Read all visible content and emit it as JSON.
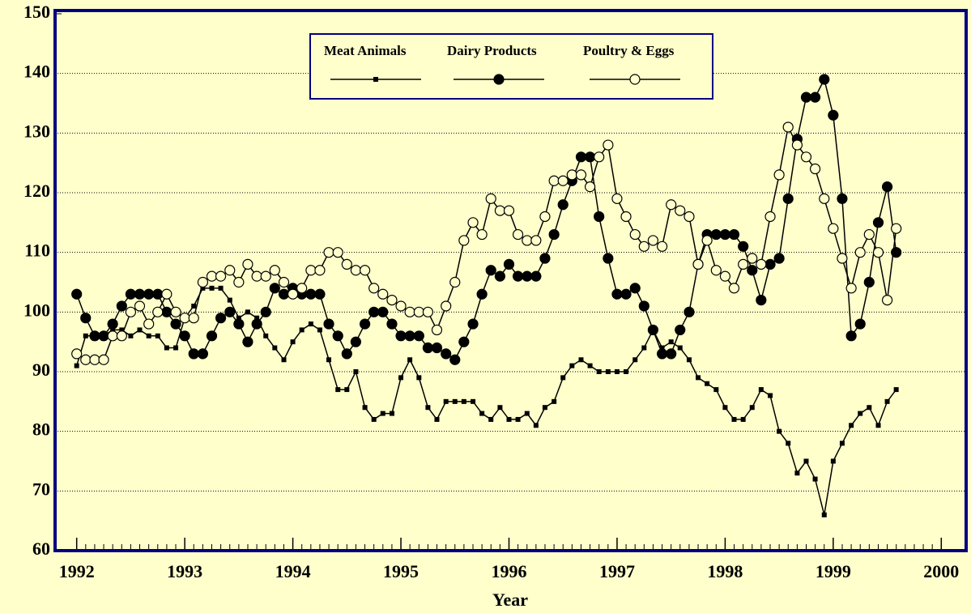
{
  "chart_data": {
    "type": "line",
    "x_label": "Year",
    "xlim": [
      1991.8,
      2000.23
    ],
    "xticks": [
      1992,
      1993,
      1994,
      1995,
      1996,
      1997,
      1998,
      1999,
      2000
    ],
    "ylim": [
      60,
      150
    ],
    "yticks": [
      60,
      70,
      80,
      90,
      100,
      110,
      120,
      130,
      140,
      150
    ],
    "grid": true,
    "legend": "top",
    "x": [
      1992,
      1992.083,
      1992.167,
      1992.25,
      1992.333,
      1992.417,
      1992.5,
      1992.583,
      1992.667,
      1992.75,
      1992.833,
      1992.917,
      1993,
      1993.083,
      1993.167,
      1993.25,
      1993.333,
      1993.417,
      1993.5,
      1993.583,
      1993.667,
      1993.75,
      1993.833,
      1993.917,
      1994,
      1994.083,
      1994.167,
      1994.25,
      1994.333,
      1994.417,
      1994.5,
      1994.583,
      1994.667,
      1994.75,
      1994.833,
      1994.917,
      1995,
      1995.083,
      1995.167,
      1995.25,
      1995.333,
      1995.417,
      1995.5,
      1995.583,
      1995.667,
      1995.75,
      1995.833,
      1995.917,
      1996,
      1996.083,
      1996.167,
      1996.25,
      1996.333,
      1996.417,
      1996.5,
      1996.583,
      1996.667,
      1996.75,
      1996.833,
      1996.917,
      1997,
      1997.083,
      1997.167,
      1997.25,
      1997.333,
      1997.417,
      1997.5,
      1997.583,
      1997.667,
      1997.75,
      1997.833,
      1997.917,
      1998,
      1998.083,
      1998.167,
      1998.25,
      1998.333,
      1998.417,
      1998.5,
      1998.583,
      1998.667,
      1998.75,
      1998.833,
      1998.917,
      1999,
      1999.083,
      1999.167,
      1999.25,
      1999.333,
      1999.417,
      1999.5,
      1999.583
    ],
    "series": [
      {
        "name": "Meat Animals",
        "color": "#000000",
        "marker": "square",
        "values": [
          91,
          96,
          96,
          96,
          97,
          97,
          96,
          97,
          96,
          96,
          94,
          94,
          99,
          101,
          104,
          104,
          104,
          102,
          99,
          100,
          99,
          96,
          94,
          92,
          95,
          97,
          98,
          97,
          92,
          87,
          87,
          90,
          84,
          82,
          83,
          83,
          89,
          92,
          89,
          84,
          82,
          85,
          85,
          85,
          85,
          83,
          82,
          84,
          82,
          82,
          83,
          81,
          84,
          85,
          89,
          91,
          92,
          91,
          90,
          90,
          90,
          90,
          92,
          94,
          97,
          94,
          95,
          94,
          92,
          89,
          88,
          87,
          84,
          82,
          82,
          84,
          87,
          86,
          80,
          78,
          73,
          75,
          72,
          66,
          75,
          78,
          81,
          83,
          84,
          81,
          85,
          87
        ]
      },
      {
        "name": "Dairy Products",
        "color": "#000000",
        "marker": "filled-circle",
        "values": [
          103,
          99,
          96,
          96,
          98,
          101,
          103,
          103,
          103,
          103,
          100,
          98,
          96,
          93,
          93,
          96,
          99,
          100,
          98,
          95,
          98,
          100,
          104,
          103,
          104,
          103,
          103,
          103,
          98,
          96,
          93,
          95,
          98,
          100,
          100,
          98,
          96,
          96,
          96,
          94,
          94,
          93,
          92,
          95,
          98,
          103,
          107,
          106,
          108,
          106,
          106,
          106,
          109,
          113,
          118,
          122,
          126,
          126,
          116,
          109,
          103,
          103,
          104,
          101,
          97,
          93,
          93,
          97,
          100,
          108,
          113,
          113,
          113,
          113,
          111,
          107,
          102,
          108,
          109,
          119,
          129,
          136,
          136,
          139,
          133,
          119,
          96,
          98,
          105,
          115,
          121,
          110
        ]
      },
      {
        "name": "Poultry & Eggs",
        "color": "#000000",
        "marker": "open-circle",
        "values": [
          93,
          92,
          92,
          92,
          96,
          96,
          100,
          101,
          98,
          100,
          103,
          100,
          99,
          99,
          105,
          106,
          106,
          107,
          105,
          108,
          106,
          106,
          107,
          105,
          103,
          104,
          107,
          107,
          110,
          110,
          108,
          107,
          107,
          104,
          103,
          102,
          101,
          100,
          100,
          100,
          97,
          101,
          105,
          112,
          115,
          113,
          119,
          117,
          117,
          113,
          112,
          112,
          116,
          122,
          122,
          123,
          123,
          121,
          126,
          128,
          119,
          116,
          113,
          111,
          112,
          111,
          118,
          117,
          116,
          108,
          112,
          107,
          106,
          104,
          108,
          109,
          108,
          116,
          123,
          131,
          128,
          126,
          124,
          119,
          114,
          109,
          104,
          110,
          113,
          110,
          102,
          114
        ]
      }
    ]
  }
}
